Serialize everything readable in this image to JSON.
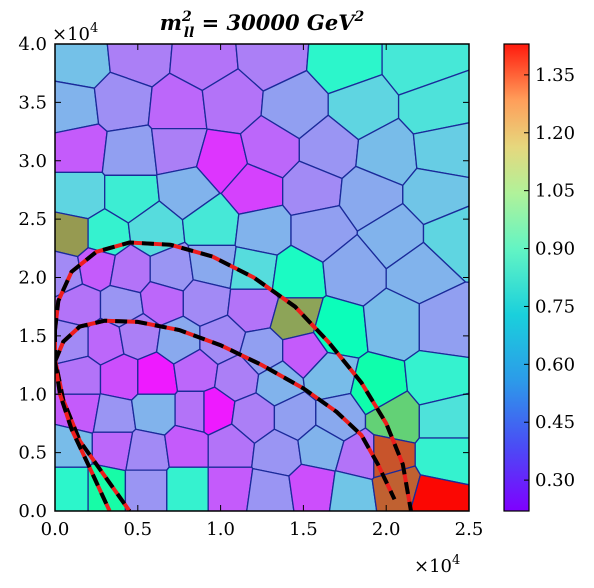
{
  "chart_data": {
    "type": "heatmap",
    "style": "voronoi",
    "title": {
      "main": "m",
      "sup": "2",
      "sub": "ll",
      "rest": " = 30000 GeV",
      "rest_sup": "2"
    },
    "x_multiplier": "×10",
    "x_multiplier_exp": "4",
    "y_multiplier": "×10",
    "y_multiplier_exp": "4",
    "xlim": [
      0,
      2.5
    ],
    "ylim": [
      0,
      4.0
    ],
    "x_ticks": [
      "0.0",
      "0.5",
      "1.0",
      "1.5",
      "2.0",
      "2.5"
    ],
    "x_tick_values": [
      0,
      0.5,
      1.0,
      1.5,
      2.0,
      2.5
    ],
    "y_ticks": [
      "0.0",
      "0.5",
      "1.0",
      "1.5",
      "2.0",
      "2.5",
      "3.0",
      "3.5",
      "4.0"
    ],
    "y_tick_values": [
      0,
      0.5,
      1.0,
      1.5,
      2.0,
      2.5,
      3.0,
      3.5,
      4.0
    ],
    "colorbar": {
      "range": [
        0.22,
        1.43
      ],
      "ticks": [
        "0.30",
        "0.45",
        "0.60",
        "0.75",
        "0.90",
        "1.05",
        "1.20",
        "1.35"
      ],
      "tick_values": [
        0.3,
        0.45,
        0.6,
        0.75,
        0.9,
        1.05,
        1.2,
        1.35
      ],
      "colormap": "rainbow"
    },
    "cells": [
      {
        "x": 0.15,
        "y": 3.85,
        "v": 0.55
      },
      {
        "x": 0.5,
        "y": 3.9,
        "v": 0.42
      },
      {
        "x": 0.9,
        "y": 3.85,
        "v": 0.4
      },
      {
        "x": 1.3,
        "y": 3.9,
        "v": 0.42
      },
      {
        "x": 1.75,
        "y": 3.85,
        "v": 0.72
      },
      {
        "x": 2.2,
        "y": 3.85,
        "v": 0.66
      },
      {
        "x": 0.1,
        "y": 3.45,
        "v": 0.52
      },
      {
        "x": 0.4,
        "y": 3.5,
        "v": 0.45
      },
      {
        "x": 0.75,
        "y": 3.45,
        "v": 0.38
      },
      {
        "x": 1.05,
        "y": 3.5,
        "v": 0.4
      },
      {
        "x": 1.45,
        "y": 3.45,
        "v": 0.48
      },
      {
        "x": 1.85,
        "y": 3.45,
        "v": 0.6
      },
      {
        "x": 2.3,
        "y": 3.45,
        "v": 0.64
      },
      {
        "x": 0.15,
        "y": 3.1,
        "v": 0.36
      },
      {
        "x": 0.45,
        "y": 3.05,
        "v": 0.48
      },
      {
        "x": 0.75,
        "y": 3.1,
        "v": 0.42
      },
      {
        "x": 1.0,
        "y": 3.0,
        "v": 0.3
      },
      {
        "x": 1.3,
        "y": 3.1,
        "v": 0.38
      },
      {
        "x": 1.65,
        "y": 3.1,
        "v": 0.46
      },
      {
        "x": 2.0,
        "y": 3.05,
        "v": 0.54
      },
      {
        "x": 2.35,
        "y": 3.1,
        "v": 0.58
      },
      {
        "x": 0.15,
        "y": 2.7,
        "v": 0.6
      },
      {
        "x": 0.45,
        "y": 2.7,
        "v": 0.68
      },
      {
        "x": 0.8,
        "y": 2.75,
        "v": 0.52
      },
      {
        "x": 1.2,
        "y": 2.75,
        "v": 0.32
      },
      {
        "x": 1.55,
        "y": 2.75,
        "v": 0.44
      },
      {
        "x": 1.9,
        "y": 2.7,
        "v": 0.5
      },
      {
        "x": 2.3,
        "y": 2.7,
        "v": 0.56
      },
      {
        "x": 0.1,
        "y": 2.35,
        "v": 1.18
      },
      {
        "x": 0.3,
        "y": 2.35,
        "v": 0.7
      },
      {
        "x": 0.6,
        "y": 2.4,
        "v": 0.62
      },
      {
        "x": 0.95,
        "y": 2.45,
        "v": 0.66
      },
      {
        "x": 1.25,
        "y": 2.4,
        "v": 0.52
      },
      {
        "x": 1.6,
        "y": 2.4,
        "v": 0.48
      },
      {
        "x": 2.05,
        "y": 2.35,
        "v": 0.52
      },
      {
        "x": 2.4,
        "y": 2.35,
        "v": 0.6
      },
      {
        "x": 0.05,
        "y": 2.05,
        "v": 0.44
      },
      {
        "x": 0.25,
        "y": 2.1,
        "v": 0.36
      },
      {
        "x": 0.45,
        "y": 2.05,
        "v": 0.4
      },
      {
        "x": 0.7,
        "y": 2.05,
        "v": 0.46
      },
      {
        "x": 0.95,
        "y": 2.1,
        "v": 0.5
      },
      {
        "x": 1.2,
        "y": 2.05,
        "v": 0.62
      },
      {
        "x": 1.45,
        "y": 2.0,
        "v": 0.76
      },
      {
        "x": 1.8,
        "y": 2.05,
        "v": 0.5
      },
      {
        "x": 2.2,
        "y": 2.05,
        "v": 0.52
      },
      {
        "x": 0.15,
        "y": 1.75,
        "v": 0.4
      },
      {
        "x": 0.4,
        "y": 1.75,
        "v": 0.46
      },
      {
        "x": 0.65,
        "y": 1.8,
        "v": 0.38
      },
      {
        "x": 0.9,
        "y": 1.8,
        "v": 0.44
      },
      {
        "x": 1.2,
        "y": 1.75,
        "v": 0.4
      },
      {
        "x": 1.45,
        "y": 1.65,
        "v": 1.16
      },
      {
        "x": 1.7,
        "y": 1.55,
        "v": 0.8
      },
      {
        "x": 2.05,
        "y": 1.6,
        "v": 0.54
      },
      {
        "x": 2.35,
        "y": 1.6,
        "v": 0.48
      },
      {
        "x": 0.1,
        "y": 1.45,
        "v": 0.44
      },
      {
        "x": 0.3,
        "y": 1.45,
        "v": 0.38
      },
      {
        "x": 0.5,
        "y": 1.5,
        "v": 0.42
      },
      {
        "x": 0.75,
        "y": 1.45,
        "v": 0.5
      },
      {
        "x": 1.0,
        "y": 1.45,
        "v": 0.44
      },
      {
        "x": 1.25,
        "y": 1.35,
        "v": 0.48
      },
      {
        "x": 1.5,
        "y": 1.35,
        "v": 0.36
      },
      {
        "x": 0.15,
        "y": 1.15,
        "v": 0.4
      },
      {
        "x": 0.4,
        "y": 1.15,
        "v": 0.34
      },
      {
        "x": 0.6,
        "y": 1.15,
        "v": 0.26
      },
      {
        "x": 0.85,
        "y": 1.2,
        "v": 0.38
      },
      {
        "x": 1.1,
        "y": 1.15,
        "v": 0.42
      },
      {
        "x": 1.35,
        "y": 1.1,
        "v": 0.52
      },
      {
        "x": 1.65,
        "y": 1.15,
        "v": 0.54
      },
      {
        "x": 1.95,
        "y": 1.05,
        "v": 0.86
      },
      {
        "x": 2.3,
        "y": 1.1,
        "v": 0.7
      },
      {
        "x": 0.15,
        "y": 0.85,
        "v": 0.36
      },
      {
        "x": 0.35,
        "y": 0.8,
        "v": 0.46
      },
      {
        "x": 0.6,
        "y": 0.85,
        "v": 0.52
      },
      {
        "x": 0.85,
        "y": 0.85,
        "v": 0.4
      },
      {
        "x": 0.95,
        "y": 0.85,
        "v": 0.26
      },
      {
        "x": 1.2,
        "y": 0.8,
        "v": 0.42
      },
      {
        "x": 1.45,
        "y": 0.8,
        "v": 0.48
      },
      {
        "x": 1.7,
        "y": 0.8,
        "v": 0.5
      },
      {
        "x": 2.05,
        "y": 0.8,
        "v": 1.06
      },
      {
        "x": 2.35,
        "y": 0.8,
        "v": 0.64
      },
      {
        "x": 0.1,
        "y": 0.55,
        "v": 0.54
      },
      {
        "x": 0.35,
        "y": 0.55,
        "v": 0.38
      },
      {
        "x": 0.55,
        "y": 0.5,
        "v": 0.44
      },
      {
        "x": 0.8,
        "y": 0.55,
        "v": 0.36
      },
      {
        "x": 1.05,
        "y": 0.55,
        "v": 0.4
      },
      {
        "x": 1.35,
        "y": 0.5,
        "v": 0.46
      },
      {
        "x": 1.6,
        "y": 0.55,
        "v": 0.52
      },
      {
        "x": 1.85,
        "y": 0.45,
        "v": 0.4
      },
      {
        "x": 2.0,
        "y": 0.45,
        "v": 1.3
      },
      {
        "x": 2.35,
        "y": 0.45,
        "v": 0.7
      },
      {
        "x": 0.1,
        "y": 0.2,
        "v": 0.72
      },
      {
        "x": 0.3,
        "y": 0.2,
        "v": 0.88
      },
      {
        "x": 0.55,
        "y": 0.2,
        "v": 0.46
      },
      {
        "x": 0.8,
        "y": 0.2,
        "v": 0.7
      },
      {
        "x": 1.05,
        "y": 0.2,
        "v": 0.36
      },
      {
        "x": 1.3,
        "y": 0.15,
        "v": 0.46
      },
      {
        "x": 1.55,
        "y": 0.2,
        "v": 0.34
      },
      {
        "x": 1.8,
        "y": 0.15,
        "v": 0.56
      },
      {
        "x": 2.05,
        "y": 0.2,
        "v": 1.28
      },
      {
        "x": 2.3,
        "y": 0.1,
        "v": 1.42
      }
    ],
    "curves": [
      {
        "name": "outer",
        "points": [
          [
            0.0,
            1.55
          ],
          [
            0.02,
            1.8
          ],
          [
            0.1,
            2.05
          ],
          [
            0.25,
            2.22
          ],
          [
            0.45,
            2.3
          ],
          [
            0.7,
            2.28
          ],
          [
            0.95,
            2.18
          ],
          [
            1.2,
            2.0
          ],
          [
            1.45,
            1.75
          ],
          [
            1.65,
            1.45
          ],
          [
            1.85,
            1.1
          ],
          [
            2.0,
            0.75
          ],
          [
            2.1,
            0.4
          ],
          [
            2.15,
            0.0
          ]
        ]
      },
      {
        "name": "inner",
        "points": [
          [
            0.0,
            1.28
          ],
          [
            0.05,
            1.45
          ],
          [
            0.15,
            1.58
          ],
          [
            0.3,
            1.63
          ],
          [
            0.5,
            1.62
          ],
          [
            0.75,
            1.55
          ],
          [
            1.0,
            1.42
          ],
          [
            1.25,
            1.25
          ],
          [
            1.5,
            1.05
          ],
          [
            1.7,
            0.85
          ],
          [
            1.85,
            0.65
          ],
          [
            1.95,
            0.4
          ],
          [
            2.05,
            0.1
          ]
        ]
      },
      {
        "name": "left-outer",
        "points": [
          [
            0.0,
            1.55
          ],
          [
            0.0,
            1.3
          ],
          [
            0.05,
            0.95
          ],
          [
            0.15,
            0.6
          ],
          [
            0.3,
            0.3
          ],
          [
            0.45,
            0.0
          ]
        ]
      },
      {
        "name": "left-inner",
        "points": [
          [
            0.0,
            1.28
          ],
          [
            0.03,
            1.0
          ],
          [
            0.1,
            0.7
          ],
          [
            0.2,
            0.4
          ],
          [
            0.33,
            0.0
          ]
        ]
      }
    ]
  }
}
